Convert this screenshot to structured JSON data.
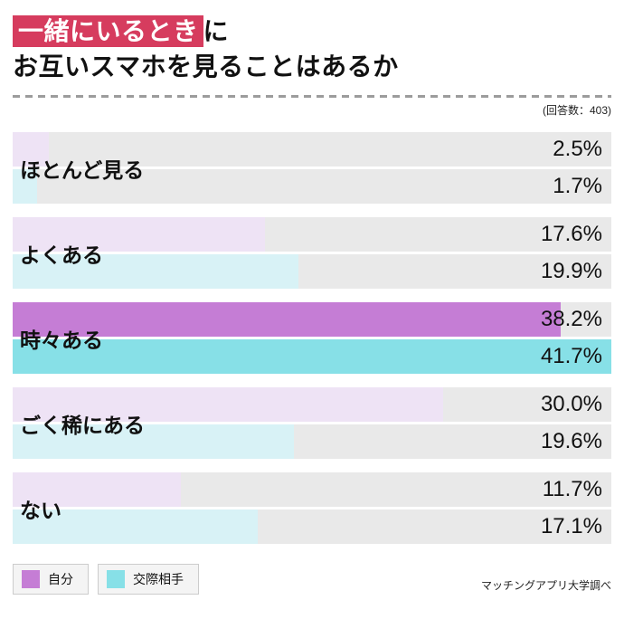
{
  "header": {
    "title_highlight": "一緒にいるとき",
    "title_suffix": "に",
    "title_line2": "お互いスマホを見ることはあるか",
    "response_note": "(回答数：403)"
  },
  "colors": {
    "title_highlight_bg": "#d63c5e",
    "self_light": "#eee3f5",
    "self_strong": "#c57dd5",
    "partner_light": "#d8f2f6",
    "partner_strong": "#87e0e7",
    "track": "#e9e9e9"
  },
  "chart_data": {
    "type": "bar",
    "orientation": "horizontal",
    "title": "一緒にいるときにお互いスマホを見ることはあるか",
    "response_count": 403,
    "categories": [
      "ほとんど見る",
      "よくある",
      "時々ある",
      "ごく稀にある",
      "ない"
    ],
    "series": [
      {
        "name": "自分",
        "values": [
          2.5,
          17.6,
          38.2,
          30.0,
          11.7
        ]
      },
      {
        "name": "交際相手",
        "values": [
          1.7,
          19.9,
          41.7,
          19.6,
          17.1
        ]
      }
    ],
    "value_labels": [
      [
        "2.5%",
        "1.7%"
      ],
      [
        "17.6%",
        "19.9%"
      ],
      [
        "38.2%",
        "41.7%"
      ],
      [
        "30.0%",
        "19.6%"
      ],
      [
        "11.7%",
        "17.1%"
      ]
    ],
    "scale_max": 41.7,
    "highlight_category_index": 2,
    "grid": false,
    "legend_position": "bottom-left"
  },
  "legend": {
    "items": [
      {
        "label": "自分"
      },
      {
        "label": "交際相手"
      }
    ]
  },
  "source": "マッチングアプリ大学調べ"
}
